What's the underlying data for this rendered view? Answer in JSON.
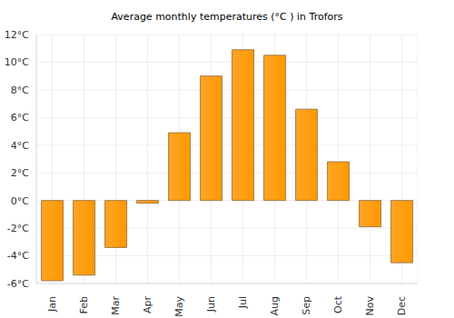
{
  "chart_data": {
    "type": "bar",
    "title": "Average monthly temperatures (°C ) in Trofors",
    "categories": [
      "Jan",
      "Feb",
      "Mar",
      "Apr",
      "May",
      "Jun",
      "Jul",
      "Aug",
      "Sep",
      "Oct",
      "Nov",
      "Dec"
    ],
    "values": [
      -5.8,
      -5.4,
      -3.4,
      -0.2,
      4.9,
      9.0,
      10.9,
      10.5,
      6.6,
      2.8,
      -1.9,
      -4.5
    ],
    "color": "#ffa424",
    "ylim": [
      -6,
      12
    ],
    "yticks": [
      {
        "value": -6,
        "label": "-6°C"
      },
      {
        "value": -4,
        "label": "-4°C"
      },
      {
        "value": -2,
        "label": "-2°C"
      },
      {
        "value": 0,
        "label": "0°C"
      },
      {
        "value": 2,
        "label": "2°C"
      },
      {
        "value": 4,
        "label": "4°C"
      },
      {
        "value": 6,
        "label": "6°C"
      },
      {
        "value": 8,
        "label": "8°C"
      },
      {
        "value": 10,
        "label": "10°C"
      },
      {
        "value": 12,
        "label": "12°C"
      }
    ],
    "grid": true
  }
}
